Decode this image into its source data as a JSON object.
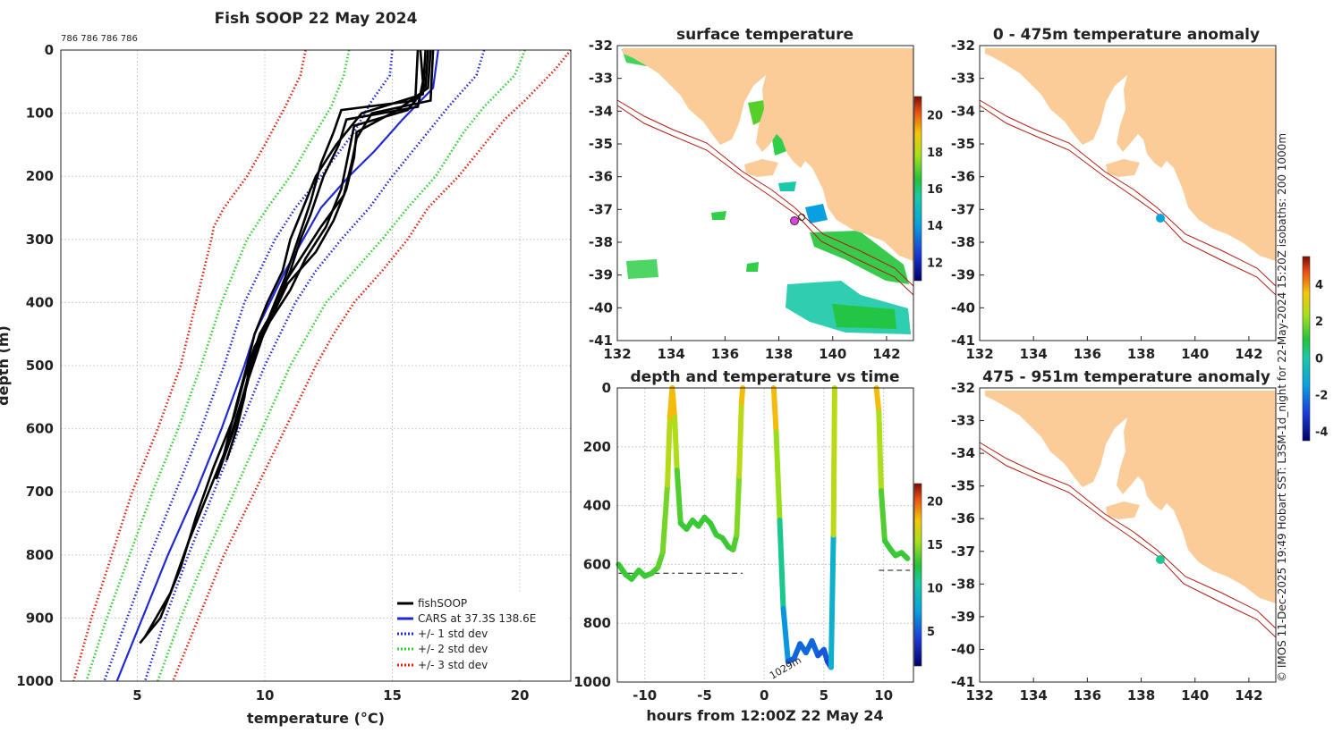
{
  "page": {
    "footer": "© IMOS 11-Dec-2025 19:49 Hobart SST: L3SM-1d_night for 22-May-2024 15:20Z isobaths: 200  1000m"
  },
  "chart_data": [
    {
      "id": "profile",
      "type": "line",
      "title": "Fish SOOP 22 May 2024",
      "annotation": "786 786 786 786",
      "xlabel": "temperature (°C)",
      "ylabel": "depth (m)",
      "xlim": [
        2,
        22
      ],
      "ylim": [
        1000,
        0
      ],
      "x_ticks": [
        5,
        10,
        15,
        20
      ],
      "y_ticks": [
        0,
        100,
        200,
        300,
        400,
        500,
        600,
        700,
        800,
        900,
        1000
      ],
      "legend": [
        "fishSOOP",
        "CARS at 37.3S 138.6E",
        "+/- 1 std dev",
        "+/- 2 std dev",
        "+/- 3 std dev"
      ],
      "legend_colors": [
        "#000000",
        "#1f28d6",
        "#1f28d6",
        "#2fcf2f",
        "#e0200f"
      ],
      "series": [
        {
          "name": "+/- 3 std dev (warm)",
          "color": "#e0200f",
          "style": "dotted",
          "depth": [
            0,
            30,
            80,
            110,
            140,
            200,
            250,
            300,
            350,
            400,
            450,
            500,
            600,
            700,
            800,
            900,
            1000
          ],
          "temp": [
            22.0,
            21.4,
            20.2,
            19.4,
            18.8,
            17.6,
            16.4,
            15.6,
            14.6,
            13.5,
            12.7,
            12.0,
            10.8,
            9.6,
            8.4,
            7.4,
            6.4
          ]
        },
        {
          "name": "+/- 2 std dev (warm)",
          "color": "#2fcf2f",
          "style": "dotted",
          "depth": [
            0,
            40,
            90,
            130,
            200,
            250,
            300,
            350,
            400,
            450,
            500,
            600,
            700,
            800,
            900,
            1000
          ],
          "temp": [
            20.2,
            19.8,
            18.6,
            17.8,
            16.7,
            15.6,
            14.6,
            13.5,
            12.4,
            11.7,
            11.0,
            9.9,
            8.8,
            7.7,
            6.7,
            5.8
          ]
        },
        {
          "name": "+/- 1 std dev (warm)",
          "color": "#1f28d6",
          "style": "dotted",
          "depth": [
            0,
            40,
            90,
            140,
            200,
            250,
            300,
            350,
            400,
            450,
            500,
            600,
            700,
            800,
            900,
            1000
          ],
          "temp": [
            18.6,
            18.3,
            17.2,
            16.2,
            15.0,
            14.1,
            13.0,
            12.0,
            11.2,
            10.6,
            10.0,
            9.0,
            8.0,
            7.0,
            6.1,
            5.3
          ]
        },
        {
          "name": "CARS at 37.3S 138.6E",
          "color": "#1f28d6",
          "style": "solid",
          "depth": [
            0,
            60,
            110,
            160,
            200,
            250,
            300,
            350,
            400,
            450,
            500,
            600,
            700,
            800,
            900,
            1000
          ],
          "temp": [
            16.8,
            16.6,
            15.4,
            14.3,
            13.3,
            12.2,
            11.5,
            10.8,
            10.2,
            9.6,
            9.2,
            8.3,
            7.3,
            6.2,
            5.2,
            4.2
          ]
        },
        {
          "name": "+/- 1 std dev (cool)",
          "color": "#1f28d6",
          "style": "dotted",
          "depth": [
            0,
            40,
            80,
            130,
            200,
            250,
            300,
            350,
            400,
            450,
            500,
            600,
            700,
            800,
            900,
            1000
          ],
          "temp": [
            15.0,
            14.9,
            14.2,
            13.5,
            12.2,
            11.2,
            10.4,
            9.8,
            9.2,
            8.8,
            8.4,
            7.5,
            6.5,
            5.5,
            4.6,
            3.7
          ]
        },
        {
          "name": "+/- 2 std dev (cool)",
          "color": "#2fcf2f",
          "style": "dotted",
          "depth": [
            0,
            40,
            90,
            130,
            200,
            250,
            300,
            350,
            400,
            450,
            500,
            600,
            700,
            800,
            900,
            1000
          ],
          "temp": [
            13.3,
            13.1,
            12.6,
            12.0,
            11.0,
            10.1,
            9.3,
            8.8,
            8.3,
            7.9,
            7.5,
            6.6,
            5.6,
            4.7,
            3.8,
            3.0
          ]
        },
        {
          "name": "+/- 3 std dev (cool)",
          "color": "#e0200f",
          "style": "dotted",
          "depth": [
            0,
            40,
            90,
            150,
            200,
            250,
            280,
            300,
            400,
            450,
            500,
            600,
            700,
            800,
            900,
            1000
          ],
          "temp": [
            11.6,
            11.4,
            10.8,
            10.0,
            9.3,
            8.4,
            8.0,
            7.9,
            7.3,
            7.0,
            6.7,
            5.8,
            4.8,
            4.0,
            3.2,
            2.5
          ]
        },
        {
          "name": "fishSOOP cast 1",
          "color": "#000000",
          "style": "solid",
          "depth": [
            0,
            50,
            90,
            110,
            150,
            200,
            260,
            300,
            350,
            400,
            450,
            500,
            550,
            600,
            650
          ],
          "temp": [
            16.1,
            16.2,
            16.0,
            13.2,
            12.9,
            12.3,
            11.8,
            11.4,
            11.0,
            10.5,
            9.8,
            9.4,
            9.2,
            8.9,
            8.5
          ]
        },
        {
          "name": "fishSOOP cast 2",
          "color": "#000000",
          "style": "solid",
          "depth": [
            0,
            60,
            95,
            120,
            160,
            220,
            280,
            330,
            380,
            430,
            480,
            540,
            620,
            700,
            780,
            860,
            930
          ],
          "temp": [
            16.4,
            16.3,
            15.6,
            13.5,
            13.3,
            13.0,
            12.4,
            11.6,
            11.0,
            10.2,
            9.6,
            9.2,
            8.6,
            7.8,
            7.0,
            6.3,
            5.3
          ]
        },
        {
          "name": "fishSOOP cast 3",
          "color": "#000000",
          "style": "solid",
          "depth": [
            0,
            80,
            100,
            140,
            180,
            230,
            280,
            330,
            380,
            430,
            480,
            530,
            600,
            680
          ],
          "temp": [
            16.6,
            16.5,
            14.2,
            13.6,
            13.4,
            13.1,
            12.2,
            11.4,
            10.6,
            10.1,
            9.6,
            9.3,
            8.8,
            8.1
          ]
        },
        {
          "name": "fishSOOP cast 4",
          "color": "#000000",
          "style": "solid",
          "depth": [
            0,
            70,
            100,
            150,
            200,
            250,
            300,
            350,
            400,
            450,
            500,
            560,
            640
          ],
          "temp": [
            16.3,
            16.2,
            13.8,
            12.8,
            12.0,
            11.5,
            11.0,
            10.7,
            10.1,
            9.6,
            9.3,
            8.9,
            8.4
          ]
        },
        {
          "name": "fishSOOP cast 5",
          "color": "#000000",
          "style": "solid",
          "depth": [
            0,
            60,
            95,
            130,
            170,
            220,
            270,
            320,
            370,
            420,
            470,
            520,
            580,
            660,
            740,
            820,
            900,
            940
          ],
          "temp": [
            16.5,
            16.4,
            15.2,
            13.6,
            13.5,
            13.2,
            12.7,
            12.0,
            10.9,
            10.3,
            9.6,
            9.2,
            8.8,
            8.0,
            7.3,
            6.7,
            5.9,
            5.1
          ]
        },
        {
          "name": "fishSOOP cast 6",
          "color": "#000000",
          "style": "solid",
          "depth": [
            0,
            80,
            95,
            130,
            180,
            240,
            300,
            360,
            420,
            480,
            540,
            600
          ],
          "temp": [
            16.0,
            15.9,
            13.0,
            12.7,
            12.2,
            11.8,
            11.3,
            10.8,
            10.2,
            9.7,
            9.2,
            8.8
          ]
        }
      ]
    },
    {
      "id": "sst_map",
      "type": "heatmap",
      "title": "surface temperature",
      "x_ticks": [
        132,
        134,
        136,
        138,
        140,
        142
      ],
      "y_ticks": [
        -32,
        -33,
        -34,
        -35,
        -36,
        -37,
        -38,
        -39,
        -40,
        -41
      ],
      "xlim": [
        132,
        143
      ],
      "ylim": [
        -41,
        -32
      ],
      "colorbar_ticks": [
        12,
        14,
        16,
        18,
        20
      ],
      "colorbar_range": [
        11,
        21
      ],
      "vessel_position": {
        "lon": 138.6,
        "lat": -37.3
      }
    },
    {
      "id": "depth_time",
      "type": "line",
      "title": "depth and temperature vs time",
      "xlabel": "hours from 12:00Z 22 May 24",
      "ylabel": "",
      "x_ticks": [
        -10,
        -5,
        0,
        5,
        10
      ],
      "y_ticks": [
        0,
        200,
        400,
        600,
        800,
        1000
      ],
      "xlim": [
        -12.3,
        12.5
      ],
      "ylim": [
        1000,
        0
      ],
      "annotation": "1029m",
      "colorbar_ticks": [
        5,
        10,
        15,
        20
      ],
      "colorbar_range": [
        1,
        22
      ],
      "bottom_depth_m": [
        590,
        590,
        580
      ],
      "trace": {
        "hours": [
          -12.2,
          -11.6,
          -11.1,
          -10.5,
          -10.0,
          -9.4,
          -8.9,
          -8.5,
          -8.1,
          -7.9,
          -7.7,
          -7.5,
          -7.3,
          -7.0,
          -6.5,
          -6.0,
          -5.5,
          -5.0,
          -4.5,
          -4.0,
          -3.5,
          -3.0,
          -2.6,
          -2.3,
          -2.1,
          -1.9,
          -1.8
        ],
        "depth": [
          600,
          635,
          650,
          620,
          640,
          630,
          610,
          560,
          330,
          100,
          0,
          100,
          280,
          460,
          480,
          450,
          470,
          440,
          460,
          500,
          510,
          540,
          550,
          500,
          300,
          50,
          0
        ],
        "temp": [
          13,
          13,
          13,
          13,
          13,
          13,
          13.5,
          14,
          14.5,
          17,
          19,
          17,
          14,
          13,
          13,
          13,
          13,
          13,
          13,
          13,
          13,
          13,
          13,
          14,
          15,
          17,
          19
        ]
      },
      "trace2": {
        "hours": [
          0.8,
          1.0,
          1.3,
          1.6,
          2.0,
          2.5,
          3.0,
          3.5,
          4.0,
          4.5,
          5.0,
          5.3,
          5.6,
          5.8,
          5.9
        ],
        "depth": [
          0,
          150,
          450,
          750,
          930,
          920,
          870,
          900,
          860,
          910,
          890,
          930,
          950,
          500,
          0
        ],
        "temp": [
          19,
          17,
          13,
          9,
          5,
          5,
          6,
          5,
          6,
          5,
          5,
          5,
          4,
          13,
          19
        ]
      },
      "trace3": {
        "hours": [
          9.4,
          9.6,
          9.8,
          10.1,
          10.6,
          11.0,
          11.5,
          12.0
        ],
        "depth": [
          0,
          80,
          350,
          520,
          550,
          570,
          560,
          580
        ],
        "temp": [
          19,
          17,
          14,
          13,
          13,
          13,
          13,
          13
        ]
      }
    },
    {
      "id": "anom_upper",
      "type": "heatmap",
      "title": "0 - 475m temperature anomaly",
      "x_ticks": [
        132,
        134,
        136,
        138,
        140,
        142
      ],
      "y_ticks": [
        -32,
        -33,
        -34,
        -35,
        -36,
        -37,
        -38,
        -39,
        -40,
        -41
      ],
      "xlim": [
        132,
        143
      ],
      "ylim": [
        -41,
        -32
      ],
      "colorbar_ticks": [
        -4,
        -2,
        0,
        2,
        4
      ],
      "colorbar_range": [
        -4.5,
        5.5
      ],
      "anomaly_value": -1.3
    },
    {
      "id": "anom_lower",
      "type": "heatmap",
      "title": "475 - 951m temperature anomaly",
      "x_ticks": [
        132,
        134,
        136,
        138,
        140,
        142
      ],
      "y_ticks": [
        -32,
        -33,
        -34,
        -35,
        -36,
        -37,
        -38,
        -39,
        -40,
        -41
      ],
      "xlim": [
        132,
        143
      ],
      "ylim": [
        -41,
        -32
      ],
      "anomaly_value": 0.2
    }
  ]
}
